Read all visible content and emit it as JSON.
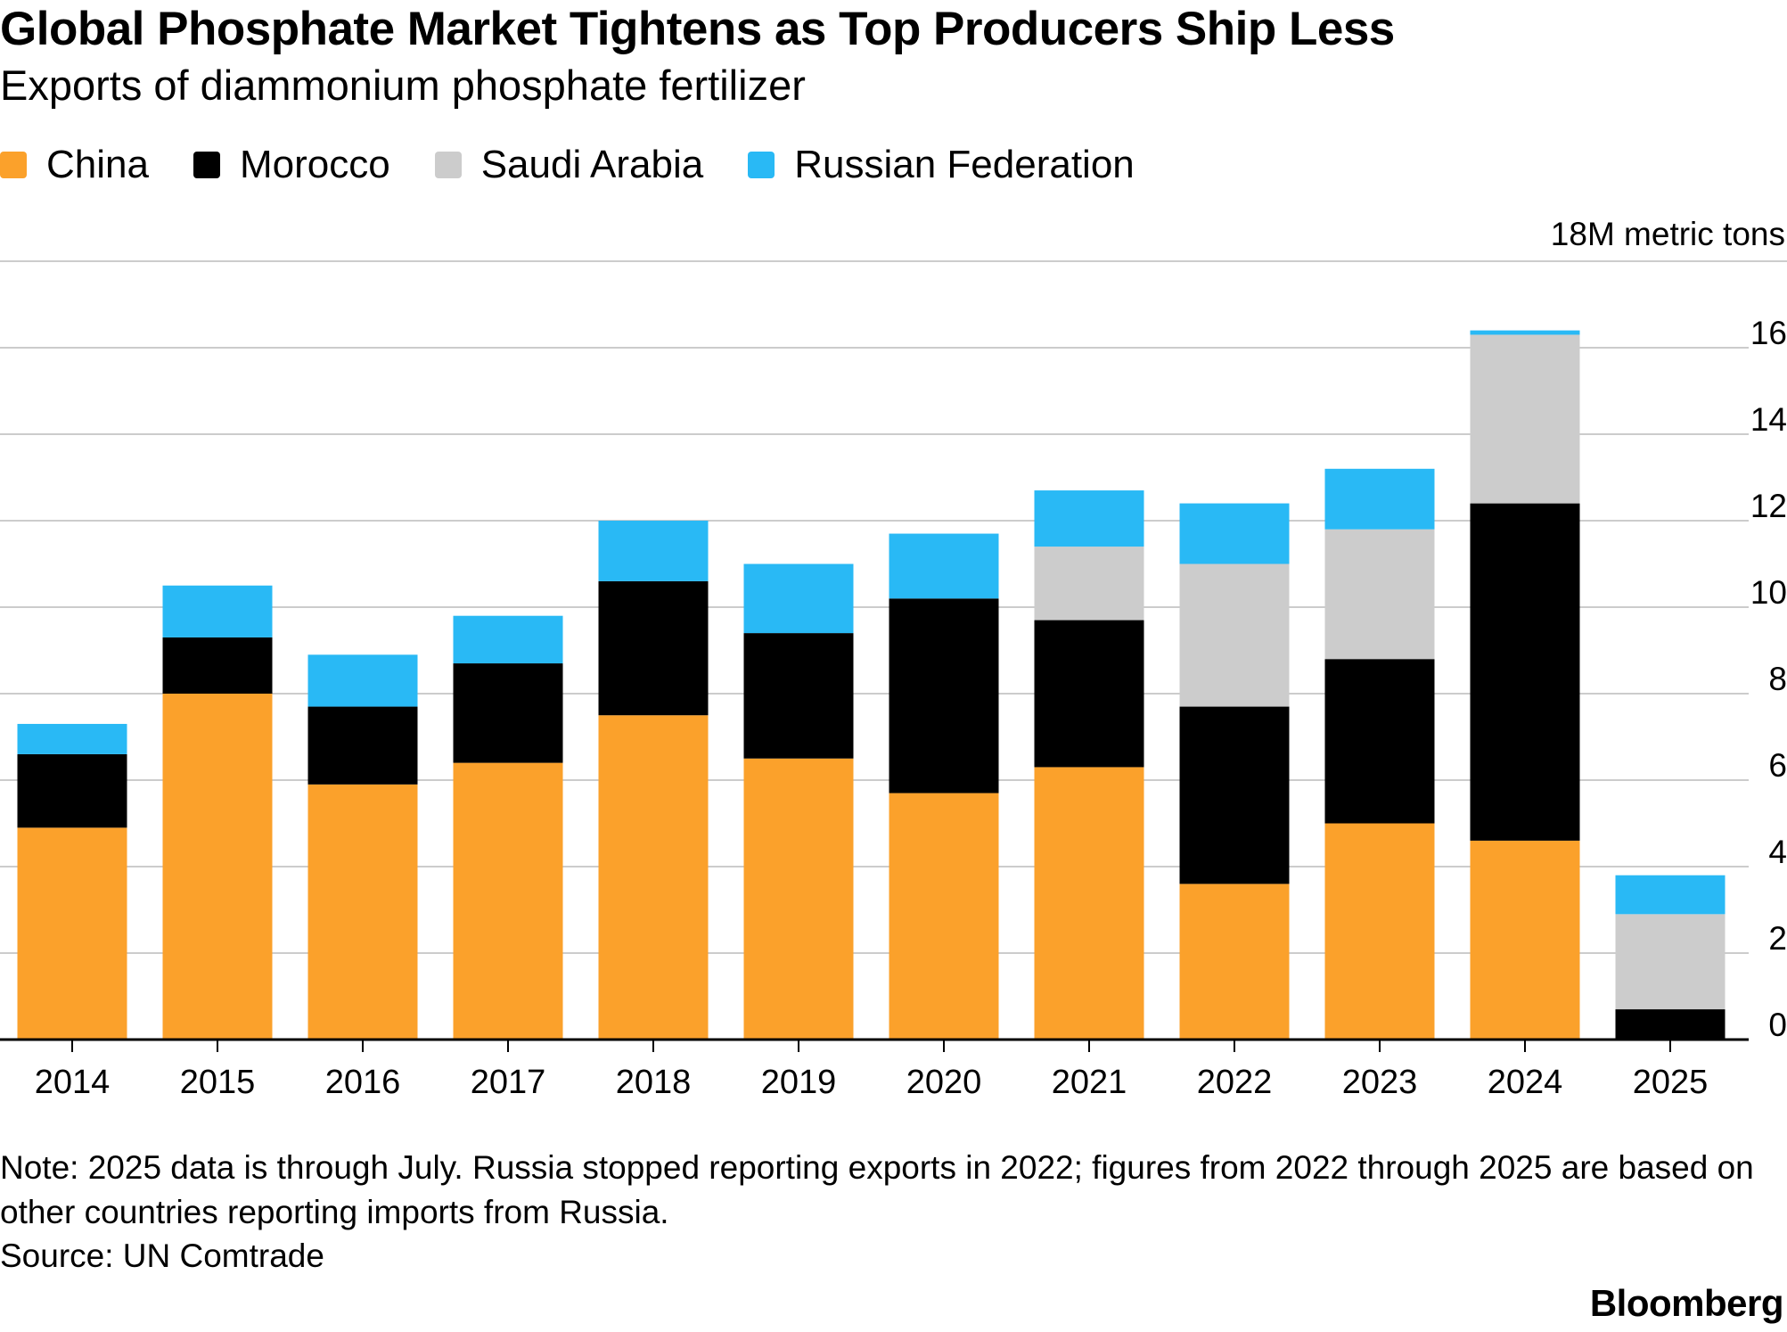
{
  "chart_data": {
    "type": "bar",
    "stacked": true,
    "title": "Global Phosphate Market Tightens as Top Producers Ship Less",
    "subtitle": "Exports of diammonium phosphate fertilizer",
    "unit_label": "18M metric tons",
    "categories": [
      "2014",
      "2015",
      "2016",
      "2017",
      "2018",
      "2019",
      "2020",
      "2021",
      "2022",
      "2023",
      "2024",
      "2025"
    ],
    "series": [
      {
        "name": "China",
        "color": "#FBA12B",
        "values": [
          4.9,
          8.0,
          5.9,
          6.4,
          7.5,
          6.5,
          5.7,
          6.3,
          3.6,
          5.0,
          4.6,
          0.0
        ]
      },
      {
        "name": "Morocco",
        "color": "#000000",
        "values": [
          1.7,
          1.3,
          1.8,
          2.3,
          3.1,
          2.9,
          4.5,
          3.4,
          4.1,
          3.8,
          7.8,
          0.7
        ]
      },
      {
        "name": "Saudi Arabia",
        "color": "#CCCCCC",
        "values": [
          0.0,
          0.0,
          0.0,
          0.0,
          0.0,
          0.0,
          0.0,
          1.7,
          3.3,
          3.0,
          3.9,
          2.2
        ]
      },
      {
        "name": "Russian Federation",
        "color": "#29B9F5",
        "values": [
          0.7,
          1.2,
          1.2,
          1.1,
          1.4,
          1.6,
          1.5,
          1.3,
          1.4,
          1.4,
          0.1,
          0.9
        ]
      }
    ],
    "ylim": [
      0,
      18
    ],
    "yticks": [
      0,
      2,
      4,
      6,
      8,
      10,
      12,
      14,
      16
    ],
    "grid": true,
    "legend_position": "top-left"
  },
  "note": "Note: 2025 data is through July. Russia stopped reporting exports in 2022; figures from 2022 through 2025 are based on other countries reporting imports from Russia.",
  "source": "Source: UN Comtrade",
  "brand": "Bloomberg"
}
